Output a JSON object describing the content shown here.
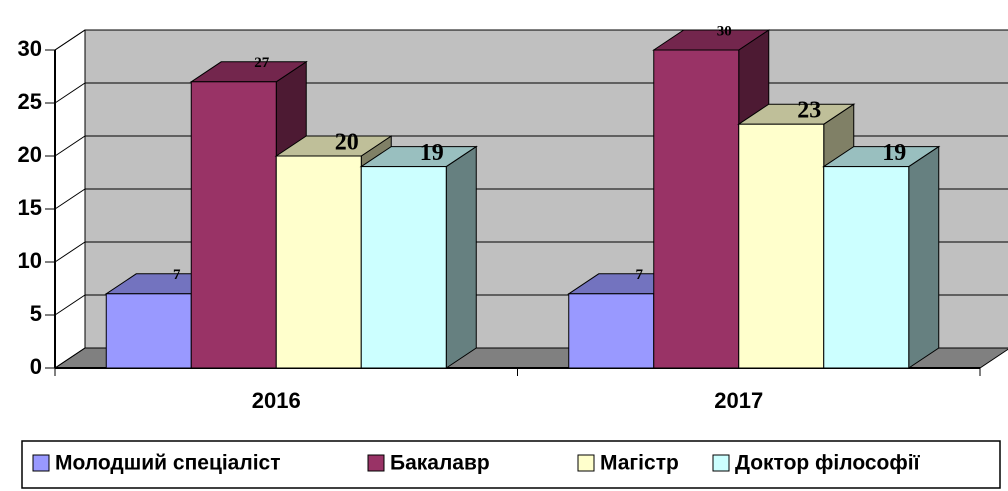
{
  "chart_data": {
    "type": "bar3d",
    "categories": [
      "2016",
      "2017"
    ],
    "series": [
      {
        "name": "Молодший спеціаліст",
        "color": "#9999ff",
        "values": [
          7,
          7
        ]
      },
      {
        "name": "Бакалавр",
        "color": "#993366",
        "values": [
          27,
          30
        ]
      },
      {
        "name": "Магістр",
        "color": "#ffffcc",
        "values": [
          20,
          23
        ]
      },
      {
        "name": "Доктор філософії",
        "color": "#ccffff",
        "values": [
          19,
          19
        ]
      }
    ],
    "ylim": [
      0,
      30
    ],
    "yticks": [
      0,
      5,
      10,
      15,
      20,
      25,
      30
    ],
    "grid": true,
    "legend": "bottom"
  }
}
